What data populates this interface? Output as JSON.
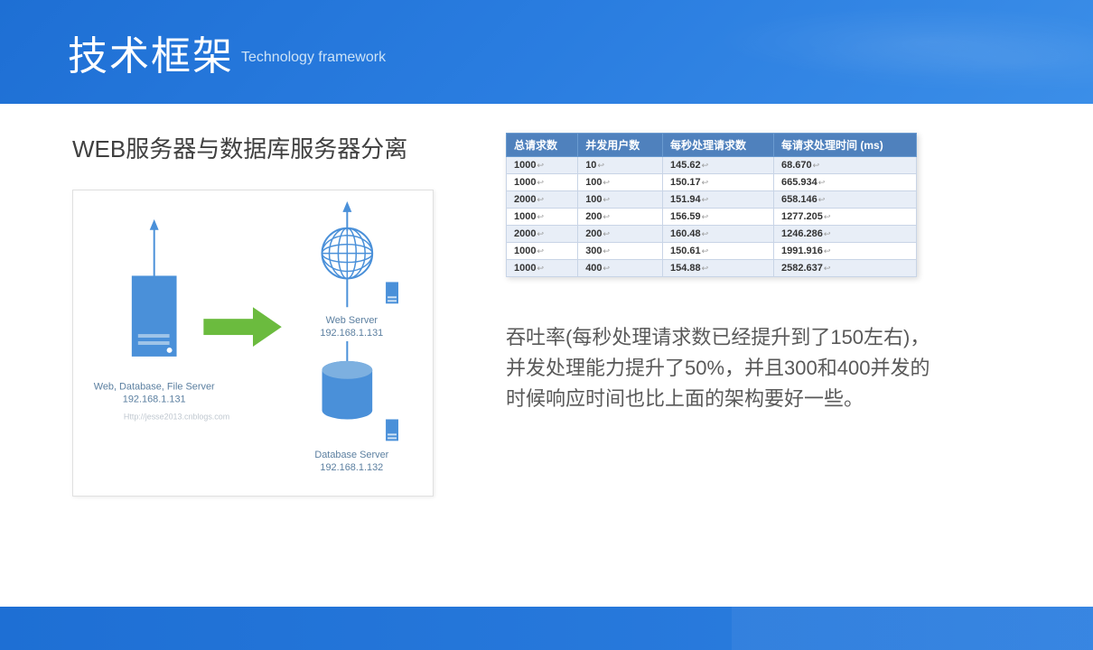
{
  "header": {
    "title_cn": "技术框架",
    "title_en": "Technology framework"
  },
  "section_title": "WEB服务器与数据库服务器分离",
  "diagram": {
    "left_server": {
      "label": "Web, Database, File Server",
      "ip": "192.168.1.131"
    },
    "web_server": {
      "label": "Web Server",
      "ip": "192.168.1.131"
    },
    "db_server": {
      "label": "Database Server",
      "ip": "192.168.1.132"
    },
    "watermark": "Http://jesse2013.cnblogs.com",
    "colors": {
      "server": "#4a90d9",
      "arrow": "#6bbb3e",
      "text": "#5b7fa0"
    }
  },
  "table": {
    "columns": [
      "总请求数",
      "并发用户数",
      "每秒处理请求数",
      "每请求处理时间 (ms)"
    ],
    "rows": [
      [
        "1000",
        "10",
        "145.62",
        "68.670"
      ],
      [
        "1000",
        "100",
        "150.17",
        "665.934"
      ],
      [
        "2000",
        "100",
        "151.94",
        "658.146"
      ],
      [
        "1000",
        "200",
        "156.59",
        "1277.205"
      ],
      [
        "2000",
        "200",
        "160.48",
        "1246.286"
      ],
      [
        "1000",
        "300",
        "150.61",
        "1991.916"
      ],
      [
        "1000",
        "400",
        "154.88",
        "2582.637"
      ]
    ],
    "header_bg": "#4f81bd",
    "odd_row_bg": "#e8eef7",
    "even_row_bg": "#ffffff",
    "border_color": "#c8d4e6"
  },
  "description": "吞吐率(每秒处理请求数已经提升到了150左右)，并发处理能力提升了50%，并且300和400并发的时候响应时间也比上面的架构要好一些。"
}
